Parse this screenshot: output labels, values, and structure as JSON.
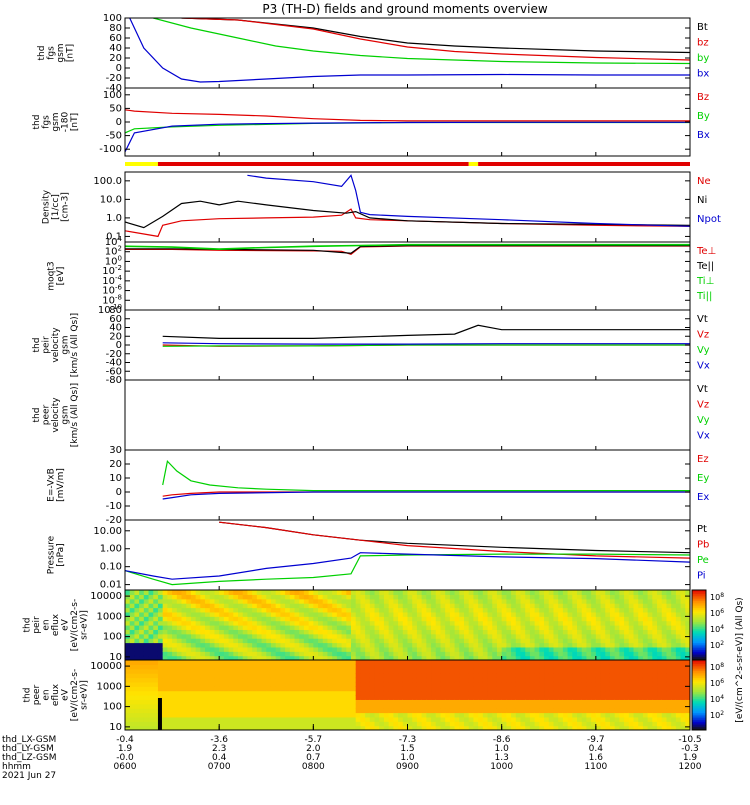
{
  "title": "P3 (TH-D) fields and ground moments overview",
  "colors": {
    "black": "#000000",
    "red": "#e00000",
    "green": "#00d000",
    "blue": "#0000d0"
  },
  "x_axis": {
    "ticks": [
      "0600",
      "0700",
      "0800",
      "0900",
      "1000",
      "1100",
      "1200"
    ],
    "rows": [
      {
        "label": "thd_LX-GSM",
        "values": [
          "-0.4",
          "-3.6",
          "-5.7",
          "-7.3",
          "-8.6",
          "-9.7",
          "-10.5"
        ]
      },
      {
        "label": "thd_LY-GSM",
        "values": [
          "1.9",
          "2.3",
          "2.0",
          "1.5",
          "1.0",
          "0.4",
          "-0.3"
        ]
      },
      {
        "label": "thd_LZ-GSM",
        "values": [
          "-0.0",
          "0.4",
          "0.7",
          "1.0",
          "1.3",
          "1.6",
          "1.9"
        ]
      },
      {
        "label": "hhmm",
        "values": [
          "0600",
          "0700",
          "0800",
          "0900",
          "1000",
          "1100",
          "1200"
        ]
      }
    ],
    "date": "2021 Jun 27"
  },
  "colorbar": {
    "label": "[eV/(cm^2-s-sr-eV)] (All Qs)",
    "ticks_upper": [
      "10^8",
      "10^6",
      "10^4",
      "10^2"
    ],
    "ticks_lower": [
      "10^8",
      "10^6",
      "10^4",
      "10^2"
    ]
  },
  "chart_data": [
    {
      "type": "line",
      "ylabel_lines": [
        "thd",
        "fgs",
        "gsm",
        "[nT]"
      ],
      "ylim": [
        -40,
        100
      ],
      "ticks": [
        "100",
        "80",
        "60",
        "40",
        "20",
        "0",
        "-20",
        "-40"
      ],
      "series": [
        {
          "name": "Bt",
          "color": "#000000",
          "x": [
            6.6,
            7.2,
            8.0,
            8.5,
            9.0,
            9.5,
            10.0,
            11.0,
            12.0
          ],
          "y": [
            100,
            96,
            80,
            63,
            50,
            44,
            40,
            34,
            31
          ]
        },
        {
          "name": "bz",
          "color": "#e00000",
          "x": [
            6.6,
            7.2,
            8.0,
            8.5,
            9.0,
            9.5,
            10.0,
            11.0,
            12.0
          ],
          "y": [
            100,
            96,
            78,
            58,
            42,
            33,
            28,
            21,
            16
          ]
        },
        {
          "name": "by",
          "color": "#00d000",
          "x": [
            6.3,
            6.7,
            7.2,
            7.6,
            8.0,
            8.5,
            9.0,
            10.0,
            11.0,
            12.0
          ],
          "y": [
            100,
            80,
            60,
            44,
            34,
            25,
            19,
            13,
            10,
            9
          ]
        },
        {
          "name": "bx",
          "color": "#0000d0",
          "x": [
            6.05,
            6.2,
            6.4,
            6.6,
            6.8,
            7.0,
            7.5,
            8.0,
            8.5,
            9.0,
            10.0,
            11.0,
            12.0
          ],
          "y": [
            100,
            40,
            0,
            -22,
            -28,
            -27,
            -22,
            -17,
            -14,
            -14,
            -13,
            -14,
            -14
          ]
        }
      ]
    },
    {
      "type": "line",
      "ylabel_lines": [
        "thd",
        "fgs",
        "gsm",
        "-180",
        "[nT]"
      ],
      "ylim": [
        -125,
        125
      ],
      "ticks": [
        "100",
        "50",
        "0",
        "-50",
        "-100"
      ],
      "series": [
        {
          "name": "Bz",
          "color": "#e00000",
          "x": [
            6.0,
            6.1,
            6.5,
            7.0,
            7.5,
            8.0,
            8.5,
            9.0,
            10.0,
            11.0,
            12.0
          ],
          "y": [
            45,
            40,
            32,
            28,
            22,
            12,
            6,
            4,
            4,
            4,
            4
          ]
        },
        {
          "name": "By",
          "color": "#00d000",
          "x": [
            6.0,
            6.1,
            6.5,
            7.0,
            8.0,
            9.0,
            10.0,
            11.0,
            12.0
          ],
          "y": [
            -40,
            -25,
            -18,
            -12,
            -5,
            -2,
            -2,
            -2,
            -2
          ]
        },
        {
          "name": "Bx",
          "color": "#0000d0",
          "x": [
            6.0,
            6.1,
            6.5,
            7.0,
            7.5,
            8.0,
            9.0,
            10.0,
            11.0,
            12.0
          ],
          "y": [
            -110,
            -40,
            -15,
            -8,
            -6,
            -4,
            -2,
            -1,
            -1,
            -1
          ]
        }
      ]
    },
    {
      "type": "line",
      "ylabel_lines": [
        "Density",
        "[1/cc]",
        "[cm-3]"
      ],
      "yscale": "log",
      "ylim": [
        0.05,
        300
      ],
      "ticks": [
        "100.0",
        "10.0",
        "1.0",
        "0.1"
      ],
      "series": [
        {
          "name": "Ne",
          "color": "#e00000",
          "x": [
            6.0,
            6.35,
            6.4,
            6.6,
            7.0,
            7.5,
            8.0,
            8.3,
            8.4,
            8.45,
            8.6,
            9.0,
            10.0,
            11.0,
            12.0
          ],
          "y": [
            0.2,
            0.1,
            0.4,
            0.7,
            0.9,
            1.0,
            1.1,
            1.4,
            3.0,
            1.0,
            0.8,
            0.7,
            0.5,
            0.4,
            0.35
          ]
        },
        {
          "name": "Ni",
          "color": "#000000",
          "x": [
            6.0,
            6.2,
            6.4,
            6.6,
            6.8,
            7.0,
            7.2,
            7.5,
            8.0,
            8.35,
            8.45,
            8.6,
            9.0,
            10.0,
            11.0,
            12.0
          ],
          "y": [
            0.6,
            0.3,
            1.2,
            6.0,
            8.0,
            5.0,
            8.0,
            5.0,
            2.5,
            1.8,
            2.2,
            1.0,
            0.7,
            0.5,
            0.45,
            0.4
          ]
        },
        {
          "name": "Npot",
          "color": "#0000d0",
          "x": [
            7.3,
            7.5,
            8.0,
            8.3,
            8.4,
            8.45,
            8.5,
            8.6,
            9.0,
            10.0,
            11.0,
            12.0
          ],
          "y": [
            200,
            140,
            90,
            50,
            200,
            30,
            2.0,
            1.5,
            1.2,
            0.8,
            0.5,
            0.35
          ]
        }
      ]
    },
    {
      "type": "line",
      "ylabel_lines": [
        "moqt3",
        "[eV]"
      ],
      "yscale": "log",
      "ylim": [
        1e-10,
        10000.0
      ],
      "ticks": [
        "10^4",
        "10^2",
        "10^0",
        "10^-2",
        "10^-4",
        "10^-6",
        "10^-8",
        "10^-10"
      ],
      "series": [
        {
          "name": "Te⊥",
          "color": "#e00000",
          "x": [
            6.0,
            6.5,
            7.0,
            8.0,
            8.3,
            8.4,
            8.5,
            9.0,
            10.0,
            11.0,
            12.0
          ],
          "y": [
            300,
            300,
            200,
            150,
            120,
            30,
            1000,
            1500,
            1500,
            1500,
            1500
          ]
        },
        {
          "name": "Te||",
          "color": "#000000",
          "x": [
            6.0,
            6.5,
            7.0,
            8.0,
            8.4,
            8.5,
            9.0,
            10.0,
            11.0,
            12.0
          ],
          "y": [
            400,
            400,
            300,
            200,
            50,
            1200,
            1800,
            1800,
            1800,
            1800
          ]
        },
        {
          "name": "Ti⊥",
          "color": "#00d000",
          "x": [
            6.0,
            6.5,
            7.0,
            7.5,
            8.0,
            8.5,
            9.0,
            10.0,
            11.0,
            12.0
          ],
          "y": [
            1500,
            1000,
            400,
            800,
            1500,
            2000,
            3000,
            3000,
            3000,
            3000
          ]
        },
        {
          "name": "Ti||",
          "color": "#00d000",
          "x": [
            6.0,
            6.5,
            7.0,
            7.5,
            8.0,
            8.5,
            9.0,
            10.0,
            11.0,
            12.0
          ],
          "y": [
            1200,
            800,
            300,
            700,
            1200,
            1800,
            2500,
            2500,
            2500,
            2500
          ]
        }
      ]
    },
    {
      "type": "line",
      "ylabel_lines": [
        "thd",
        "peir",
        "velocity",
        "gsm",
        "[km/s (All Qs)]"
      ],
      "ylim": [
        -80,
        80
      ],
      "ticks": [
        "80",
        "60",
        "40",
        "20",
        "0",
        "-20",
        "-40",
        "-60",
        "-80"
      ],
      "series": [
        {
          "name": "Vt",
          "color": "#000000",
          "x": [
            6.4,
            7.0,
            8.0,
            9.0,
            9.5,
            9.75,
            10.0,
            11.0,
            12.0
          ],
          "y": [
            20,
            15,
            15,
            22,
            25,
            45,
            35,
            35,
            35
          ]
        },
        {
          "name": "Vz",
          "color": "#e00000",
          "x": [
            6.4,
            7.0,
            8.0,
            9.0,
            10.0,
            11.0,
            12.0
          ],
          "y": [
            0,
            -3,
            -2,
            0,
            0,
            0,
            0
          ]
        },
        {
          "name": "Vy",
          "color": "#00d000",
          "x": [
            6.4,
            7.0,
            8.0,
            9.0,
            10.0,
            11.0,
            12.0
          ],
          "y": [
            -3,
            -2,
            -2,
            0,
            0,
            0,
            0
          ]
        },
        {
          "name": "Vx",
          "color": "#0000d0",
          "x": [
            6.4,
            7.0,
            8.0,
            9.0,
            10.0,
            11.0,
            12.0
          ],
          "y": [
            5,
            3,
            2,
            2,
            3,
            3,
            3
          ]
        }
      ]
    },
    {
      "type": "line",
      "ylabel_lines": [
        "thd",
        "peer",
        "velocity",
        "gsm",
        "[km/s (All Qs)]"
      ],
      "ylim": [
        -80,
        80
      ],
      "ticks": [],
      "series": [
        {
          "name": "Vt",
          "color": "#000000",
          "x": [],
          "y": []
        },
        {
          "name": "Vz",
          "color": "#e00000",
          "x": [],
          "y": []
        },
        {
          "name": "Vy",
          "color": "#00d000",
          "x": [],
          "y": []
        },
        {
          "name": "Vx",
          "color": "#0000d0",
          "x": [],
          "y": []
        }
      ]
    },
    {
      "type": "line",
      "ylabel_lines": [
        "E=-VxB",
        "[mV/m]"
      ],
      "ylim": [
        -20,
        30
      ],
      "ticks": [
        "30",
        "20",
        "10",
        "0",
        "-10",
        "-20"
      ],
      "series": [
        {
          "name": "Ez",
          "color": "#e00000",
          "x": [
            6.4,
            6.5,
            6.7,
            7.0,
            8.0,
            9.0,
            10.0,
            11.0,
            12.0
          ],
          "y": [
            -3,
            -2,
            -1,
            0,
            0,
            0,
            0,
            0,
            0
          ]
        },
        {
          "name": "Ey",
          "color": "#00d000",
          "x": [
            6.4,
            6.45,
            6.55,
            6.7,
            6.9,
            7.2,
            7.5,
            8.0,
            9.0,
            10.0,
            11.0,
            12.0
          ],
          "y": [
            5,
            22,
            15,
            8,
            5,
            3,
            2,
            1,
            1,
            1,
            1,
            1
          ]
        },
        {
          "name": "Ex",
          "color": "#0000d0",
          "x": [
            6.4,
            6.5,
            6.7,
            7.0,
            8.0,
            9.0,
            10.0,
            11.0,
            12.0
          ],
          "y": [
            -5,
            -4,
            -2,
            -1,
            0,
            0,
            0,
            0,
            0
          ]
        }
      ]
    },
    {
      "type": "line",
      "ylabel_lines": [
        "Pressure",
        "[nPa]"
      ],
      "yscale": "log",
      "ylim": [
        0.005,
        40
      ],
      "ticks": [
        "10.00",
        "1.00",
        "0.10",
        "0.01"
      ],
      "series": [
        {
          "name": "Pt",
          "color": "#000000",
          "x": [
            7.0,
            7.5,
            8.0,
            8.5,
            9.0,
            10.0,
            11.0,
            12.0
          ],
          "y": [
            30,
            15,
            6,
            3,
            2,
            1.2,
            0.8,
            0.6
          ]
        },
        {
          "name": "Pb",
          "color": "#e00000",
          "x": [
            7.0,
            7.5,
            8.0,
            8.5,
            9.0,
            10.0,
            11.0,
            12.0
          ],
          "y": [
            30,
            15,
            6,
            3,
            1.5,
            0.7,
            0.4,
            0.3
          ]
        },
        {
          "name": "Pe",
          "color": "#00d000",
          "x": [
            6.0,
            6.3,
            6.5,
            7.0,
            7.5,
            8.0,
            8.4,
            8.5,
            9.0,
            10.0,
            11.0,
            12.0
          ],
          "y": [
            0.06,
            0.02,
            0.01,
            0.015,
            0.02,
            0.025,
            0.04,
            0.4,
            0.45,
            0.5,
            0.5,
            0.45
          ]
        },
        {
          "name": "Pi",
          "color": "#0000d0",
          "x": [
            6.0,
            6.3,
            6.5,
            7.0,
            7.5,
            8.0,
            8.4,
            8.5,
            9.0,
            10.0,
            11.0,
            12.0
          ],
          "y": [
            0.06,
            0.03,
            0.02,
            0.03,
            0.08,
            0.15,
            0.3,
            0.6,
            0.5,
            0.35,
            0.28,
            0.18
          ]
        }
      ]
    },
    {
      "type": "heatmap",
      "ylabel_lines": [
        "thd",
        "peir",
        "en",
        "eflux",
        "eV",
        "[eV/(cm2-s-",
        "sr-eV)]"
      ],
      "yscale": "log",
      "ylim": [
        7,
        20000
      ],
      "ticks": [
        "10000",
        "1000",
        "100",
        "10"
      ],
      "description_levels": "log10 eflux 2-8"
    },
    {
      "type": "heatmap",
      "ylabel_lines": [
        "thd",
        "peer",
        "en",
        "eflux",
        "eV",
        "[eV/(cm2-s-",
        "sr-eV)]"
      ],
      "yscale": "log",
      "ylim": [
        7,
        20000
      ],
      "ticks": [
        "10000",
        "1000",
        "100",
        "10"
      ],
      "description_levels": "log10 eflux 2-8"
    }
  ],
  "status_bar": [
    {
      "x0": 6.0,
      "x1": 6.35,
      "color": "#ffff00"
    },
    {
      "x0": 6.35,
      "x1": 9.65,
      "color": "#e00000"
    },
    {
      "x0": 9.65,
      "x1": 9.75,
      "color": "#ffff00"
    },
    {
      "x0": 9.75,
      "x1": 12.0,
      "color": "#e00000"
    }
  ]
}
